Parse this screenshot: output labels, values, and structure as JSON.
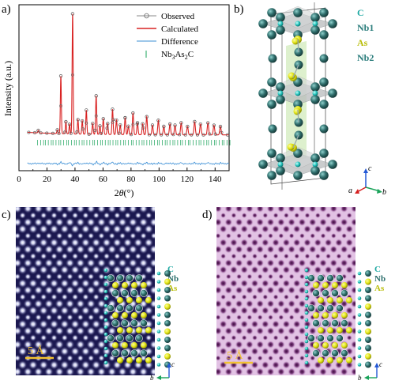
{
  "panels": {
    "a": "a)",
    "b": "b)",
    "c": "c)",
    "d": "d)"
  },
  "chart_data": {
    "type": "line",
    "ylabel": "Intensity (a.u.)",
    "xlabel_theta": "θ",
    "xlabel_pre": "2",
    "xlabel_unit": "(°)",
    "xlim": [
      0,
      150
    ],
    "xticks": [
      "0",
      "20",
      "40",
      "60",
      "80",
      "100",
      "120",
      "140"
    ],
    "legend": {
      "placement": "top-right",
      "entries": [
        "Observed",
        "Calculated",
        "Difference",
        "Nb3As2C"
      ],
      "formula_parts": [
        "Nb",
        "3",
        "As",
        "2",
        "C"
      ]
    },
    "peaks": {
      "x": [
        13.8,
        27.4,
        29.9,
        33.5,
        36.1,
        38.3,
        42.1,
        45.2,
        48.1,
        52.6,
        55.1,
        57.8,
        60.2,
        63.3,
        66.8,
        69.6,
        72.3,
        75.8,
        78.1,
        81.4,
        84.6,
        88.3,
        91.2,
        95.3,
        99.5,
        103.4,
        107.8,
        111.4,
        115.8,
        120.3,
        125.4,
        129.6,
        134.9,
        139.2,
        143.8
      ],
      "y": [
        2,
        3,
        48,
        10,
        8,
        100,
        12,
        11,
        20,
        9,
        32,
        7,
        13,
        9,
        21,
        12,
        8,
        14,
        7,
        18,
        10,
        9,
        15,
        8,
        12,
        7,
        9,
        8,
        10,
        7,
        11,
        9,
        10,
        8,
        7
      ]
    }
  },
  "crystal": {
    "legend": [
      "C",
      "Nb1",
      "As",
      "Nb2"
    ],
    "colors": {
      "C": "#1fa9a3",
      "Nb1": "#2b7d7c",
      "As": "#c6cb10",
      "Nb2": "#2b7d7c",
      "nb_sphere": "#2f6e6c",
      "as_sphere": "#e6e81b",
      "c_sphere": "#29c5be"
    },
    "axes": {
      "a": "a",
      "b": "b",
      "c": "c"
    }
  },
  "micrographs": {
    "c": {
      "legend": [
        "C",
        "Nb",
        "As"
      ],
      "scale": "5 Å",
      "axes": {
        "b": "b",
        "c": "c"
      }
    },
    "d": {
      "legend": [
        "C",
        "Nb",
        "As"
      ],
      "scale": "5 Å",
      "axes": {
        "b": "b",
        "c": "c"
      }
    }
  }
}
